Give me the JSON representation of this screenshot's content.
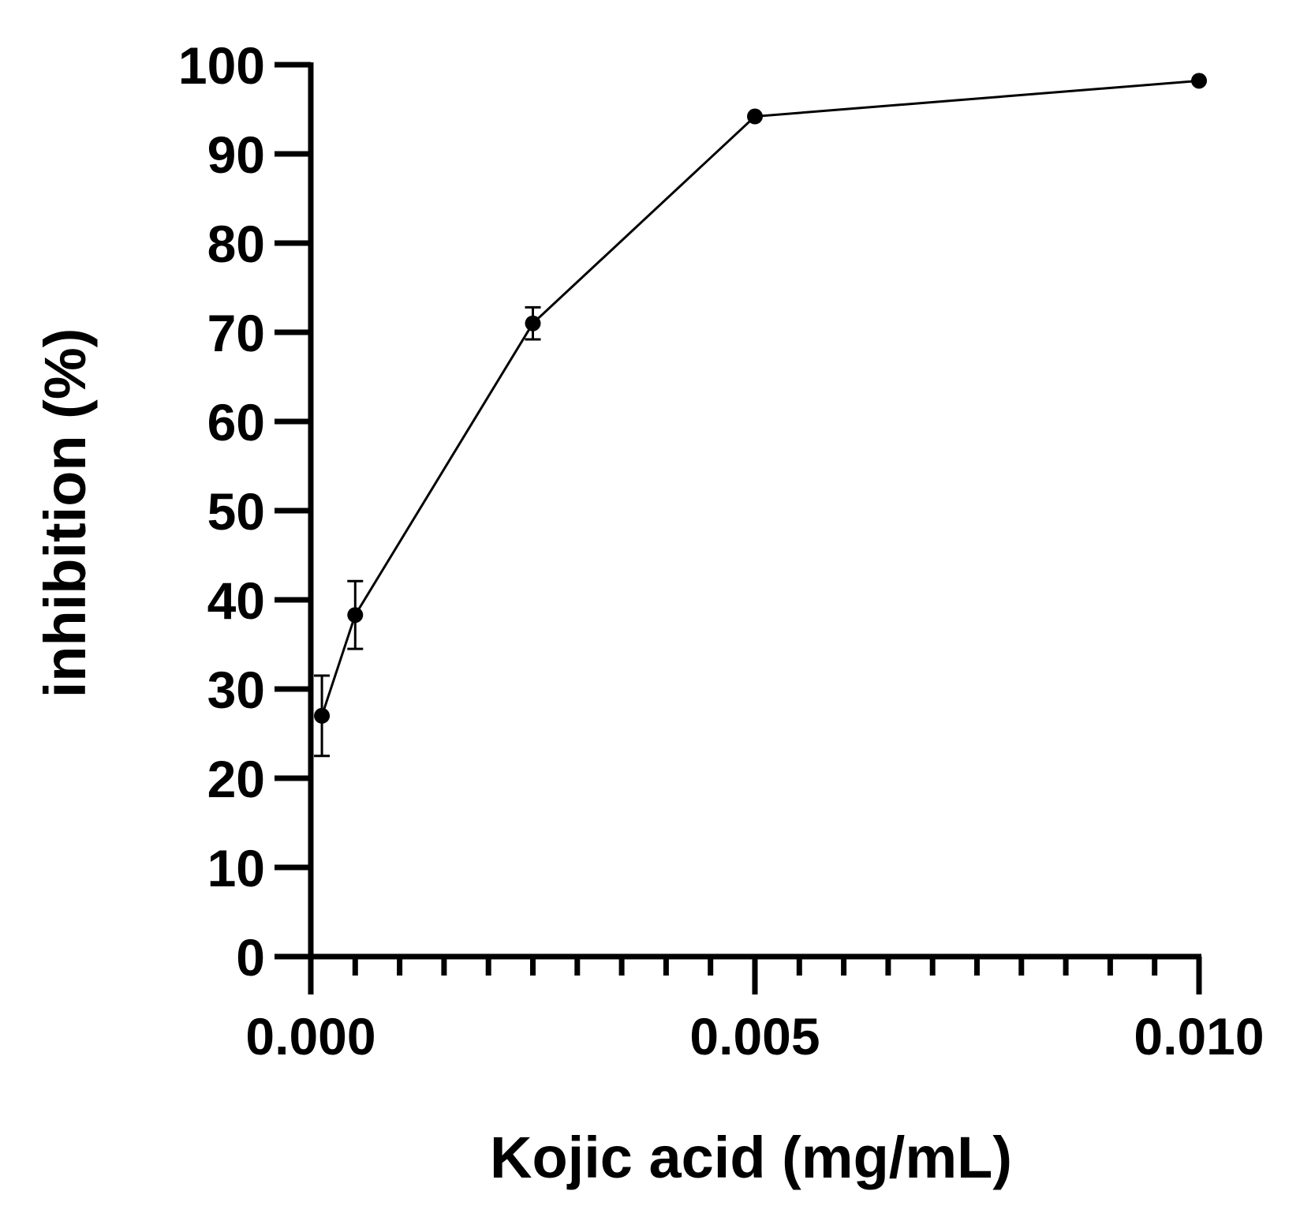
{
  "chart_data": {
    "type": "line",
    "title": "",
    "xlabel": "Kojic acid (mg/mL)",
    "ylabel": "inhibition (%)",
    "xlim": [
      0,
      0.01
    ],
    "ylim": [
      0,
      100
    ],
    "x_major_ticks": [
      0,
      0.005,
      0.01
    ],
    "x_tick_labels": [
      "0.000",
      "0.005",
      "0.010"
    ],
    "x_minor_step": 0.0005,
    "y_ticks": [
      0,
      10,
      20,
      30,
      40,
      50,
      60,
      70,
      80,
      90,
      100
    ],
    "y_tick_labels": [
      "0",
      "10",
      "20",
      "30",
      "40",
      "50",
      "60",
      "70",
      "80",
      "90",
      "100"
    ],
    "grid": false,
    "legend": "none",
    "colors": {
      "line": "#000000",
      "marker": "#000000"
    },
    "series": [
      {
        "x": [
          0.000125,
          0.0005,
          0.0025,
          0.005,
          0.01
        ],
        "y": [
          27,
          38.3,
          71,
          94.2,
          98.2
        ],
        "error": [
          4.5,
          3.8,
          1.8,
          0,
          0
        ]
      }
    ]
  }
}
